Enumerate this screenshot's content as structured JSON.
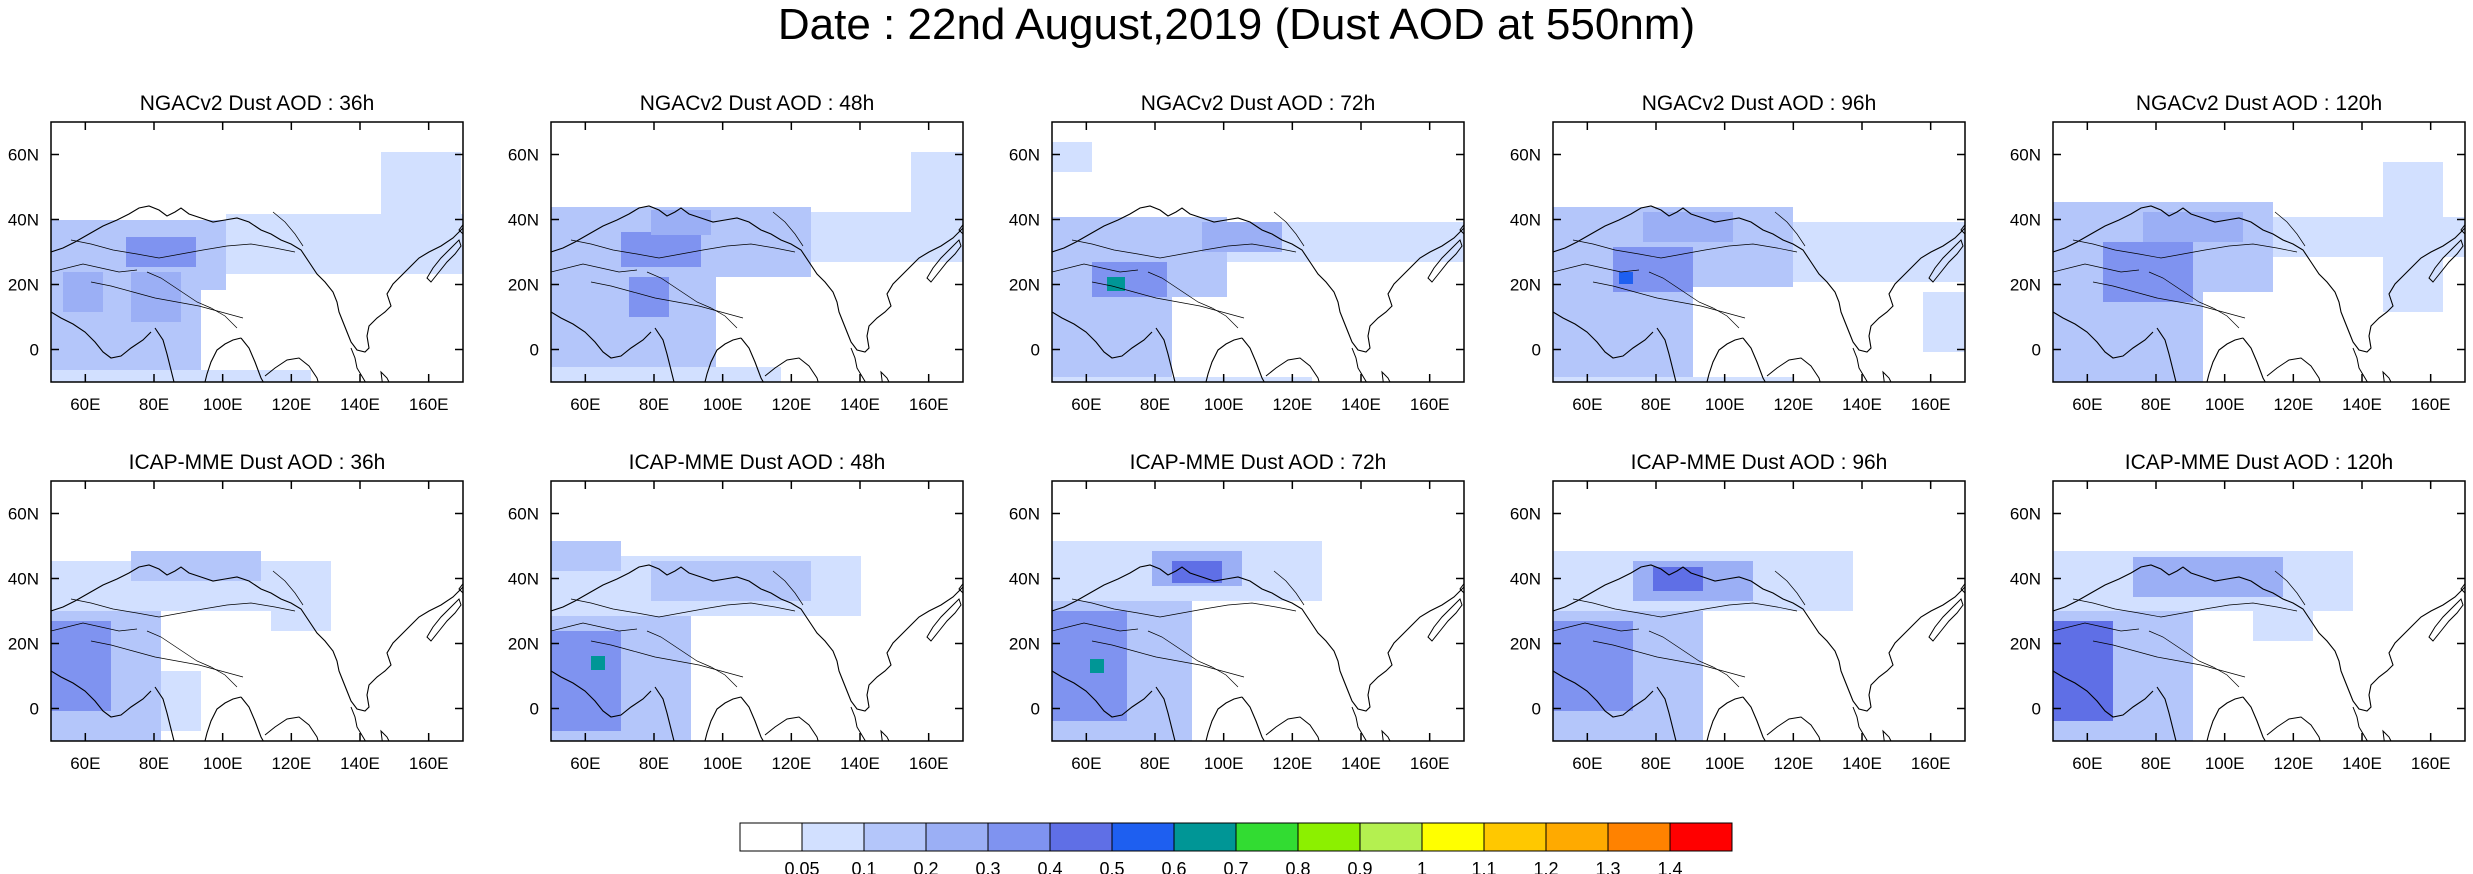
{
  "figure": {
    "title": "Date : 22nd August,2019 (Dust AOD at 550nm)",
    "lon_ticks": [
      "60E",
      "80E",
      "100E",
      "120E",
      "140E",
      "160E"
    ],
    "lat_ticks": [
      "60N",
      "40N",
      "20N",
      "0"
    ],
    "lon_range": [
      50,
      170
    ],
    "lat_range": [
      -10,
      70
    ]
  },
  "panels": [
    {
      "title": "NGACv2 Dust AOD : 36h",
      "model": "NGACv2",
      "lead": "36h"
    },
    {
      "title": "NGACv2 Dust AOD : 48h",
      "model": "NGACv2",
      "lead": "48h"
    },
    {
      "title": "NGACv2 Dust AOD : 72h",
      "model": "NGACv2",
      "lead": "72h"
    },
    {
      "title": "NGACv2 Dust AOD : 96h",
      "model": "NGACv2",
      "lead": "96h"
    },
    {
      "title": "NGACv2 Dust AOD : 120h",
      "model": "NGACv2",
      "lead": "120h"
    },
    {
      "title": "ICAP-MME Dust AOD : 36h",
      "model": "ICAP-MME",
      "lead": "36h"
    },
    {
      "title": "ICAP-MME Dust AOD : 48h",
      "model": "ICAP-MME",
      "lead": "48h"
    },
    {
      "title": "ICAP-MME Dust AOD : 72h",
      "model": "ICAP-MME",
      "lead": "72h"
    },
    {
      "title": "ICAP-MME Dust AOD : 96h",
      "model": "ICAP-MME",
      "lead": "96h"
    },
    {
      "title": "ICAP-MME Dust AOD : 120h",
      "model": "ICAP-MME",
      "lead": "120h"
    }
  ],
  "colorbar": {
    "labels": [
      "0.05",
      "0.1",
      "0.2",
      "0.3",
      "0.4",
      "0.5",
      "0.6",
      "0.7",
      "0.8",
      "0.9",
      "1",
      "1.1",
      "1.2",
      "1.3",
      "1.4"
    ],
    "colors": [
      "#ffffff",
      "#d2e0ff",
      "#b4c6fa",
      "#9baff5",
      "#7f93f0",
      "#5f6fe6",
      "#1e5ff0",
      "#009696",
      "#32dc32",
      "#8cf000",
      "#b4f050",
      "#ffff00",
      "#ffc800",
      "#ffaa00",
      "#ff8200",
      "#ff0000"
    ]
  }
}
